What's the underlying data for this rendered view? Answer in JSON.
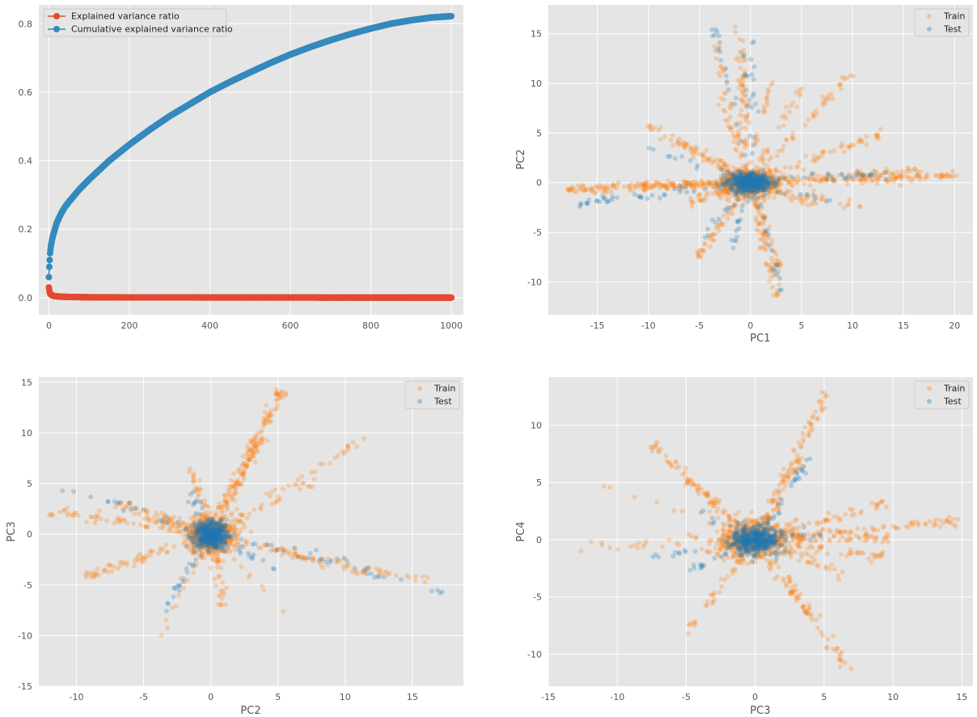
{
  "chart_data": [
    {
      "id": "variance",
      "type": "line",
      "title": "",
      "xlabel": "",
      "ylabel": "",
      "xlim": [
        -25,
        1030
      ],
      "ylim": [
        -0.05,
        0.855
      ],
      "xticks": [
        0,
        200,
        400,
        600,
        800,
        1000
      ],
      "yticks": [
        0.0,
        0.2,
        0.4,
        0.6,
        0.8
      ],
      "xtick_labels": [
        "0",
        "200",
        "400",
        "600",
        "800",
        "1000"
      ],
      "ytick_labels": [
        "0.0",
        "0.2",
        "0.4",
        "0.6",
        "0.8"
      ],
      "grid": true,
      "legend_position": "top-left",
      "series": [
        {
          "name": "Explained variance ratio",
          "color": "#e24a33",
          "marker": "circle",
          "x": [
            0,
            1,
            2,
            3,
            5,
            8,
            12,
            20,
            30,
            50,
            100,
            200,
            400,
            600,
            800,
            1000
          ],
          "values": [
            0.03,
            0.022,
            0.015,
            0.012,
            0.009,
            0.007,
            0.005,
            0.004,
            0.003,
            0.002,
            0.0012,
            0.0009,
            0.0006,
            0.0004,
            0.0003,
            0.0002
          ]
        },
        {
          "name": "Cumulative explained variance ratio",
          "color": "#348abd",
          "marker": "circle",
          "x": [
            0,
            1,
            2,
            3,
            5,
            8,
            10,
            15,
            20,
            30,
            40,
            50,
            75,
            100,
            150,
            200,
            250,
            300,
            350,
            400,
            450,
            500,
            550,
            600,
            650,
            700,
            750,
            800,
            850,
            900,
            950,
            1000
          ],
          "values": [
            0.06,
            0.09,
            0.11,
            0.13,
            0.15,
            0.17,
            0.18,
            0.2,
            0.22,
            0.245,
            0.265,
            0.28,
            0.315,
            0.345,
            0.4,
            0.447,
            0.49,
            0.53,
            0.565,
            0.6,
            0.63,
            0.658,
            0.685,
            0.71,
            0.732,
            0.752,
            0.77,
            0.786,
            0.8,
            0.81,
            0.818,
            0.822
          ]
        }
      ]
    },
    {
      "id": "pc1-pc2",
      "type": "scatter",
      "xlabel": "PC1",
      "ylabel": "PC2",
      "xlim": [
        -19.8,
        21.8
      ],
      "ylim": [
        -13.3,
        17.9
      ],
      "xticks": [
        -15,
        -10,
        -5,
        0,
        5,
        10,
        15,
        20
      ],
      "yticks": [
        -10,
        -5,
        0,
        5,
        10,
        15
      ],
      "xtick_labels": [
        "-15",
        "-10",
        "-5",
        "0",
        "5",
        "10",
        "15",
        "20"
      ],
      "ytick_labels": [
        "-10",
        "-5",
        "0",
        "5",
        "10",
        "15"
      ],
      "grid": true,
      "legend_position": "top-right",
      "seed": 101,
      "core_spread": [
        1.4,
        0.7
      ],
      "test_core_spread": [
        1.0,
        0.5
      ],
      "series": [
        {
          "name": "Train",
          "color": "#ff7f0e",
          "opacity": 0.25,
          "core_points": 550,
          "arms": [
            {
              "end": [
                -18,
                -0.6
              ],
              "n": 120
            },
            {
              "end": [
                -11,
                -0.3
              ],
              "n": 60
            },
            {
              "end": [
                20.3,
                0.7
              ],
              "n": 110
            },
            {
              "end": [
                16.5,
                1.2
              ],
              "n": 60
            },
            {
              "end": [
                13,
                5.0
              ],
              "n": 45
            },
            {
              "end": [
                9.8,
                11.0
              ],
              "n": 40
            },
            {
              "end": [
                -1.2,
                15.8
              ],
              "n": 55
            },
            {
              "end": [
                -3.5,
                13.8
              ],
              "n": 30
            },
            {
              "end": [
                -10,
                5.8
              ],
              "n": 40
            },
            {
              "end": [
                -7.2,
                4.3
              ],
              "n": 30
            },
            {
              "end": [
                2.6,
                -11.8
              ],
              "n": 50
            },
            {
              "end": [
                -5.2,
                -7.5
              ],
              "n": 45
            },
            {
              "end": [
                2.8,
                -8.5
              ],
              "n": 45
            },
            {
              "end": [
                6.5,
                -2.2
              ],
              "n": 25
            },
            {
              "end": [
                11.0,
                -2.5
              ],
              "n": 25
            },
            {
              "end": [
                -3.0,
                9.0
              ],
              "n": 25
            },
            {
              "end": [
                5.0,
                9.5
              ],
              "n": 25
            },
            {
              "end": [
                -6.0,
                -2.0
              ],
              "n": 30
            },
            {
              "end": [
                2.0,
                10.5
              ],
              "n": 20
            }
          ]
        },
        {
          "name": "Test",
          "color": "#1f77b4",
          "opacity": 0.25,
          "core_points": 450,
          "arms": [
            {
              "end": [
                -17,
                -2.2
              ],
              "n": 40
            },
            {
              "end": [
                13.5,
                1.0
              ],
              "n": 25
            },
            {
              "end": [
                -3.5,
                15.5
              ],
              "n": 18
            },
            {
              "end": [
                0.3,
                14.5
              ],
              "n": 18
            },
            {
              "end": [
                3.3,
                -11.5
              ],
              "n": 18
            },
            {
              "end": [
                -2.0,
                -7.0
              ],
              "n": 15
            },
            {
              "end": [
                -10,
                3.5
              ],
              "n": 12
            },
            {
              "end": [
                8.0,
                -1.8
              ],
              "n": 12
            },
            {
              "end": [
                -4.5,
                -5.5
              ],
              "n": 12
            },
            {
              "end": [
                -0.8,
                17.3
              ],
              "n": 6
            }
          ]
        }
      ]
    },
    {
      "id": "pc2-pc3",
      "type": "scatter",
      "xlabel": "PC2",
      "ylabel": "PC3",
      "xlim": [
        -12.8,
        18.8
      ],
      "ylim": [
        -15.0,
        15.5
      ],
      "xticks": [
        -10,
        -5,
        0,
        5,
        10,
        15
      ],
      "yticks": [
        -15,
        -10,
        -5,
        0,
        5,
        10,
        15
      ],
      "xtick_labels": [
        "-10",
        "-5",
        "0",
        "5",
        "10",
        "15"
      ],
      "ytick_labels": [
        "-15",
        "-10",
        "-5",
        "0",
        "5",
        "10",
        "15"
      ],
      "grid": true,
      "legend_position": "top-right",
      "seed": 202,
      "core_spread": [
        0.9,
        0.9
      ],
      "test_core_spread": [
        0.7,
        0.7
      ],
      "series": [
        {
          "name": "Train",
          "color": "#ff7f0e",
          "opacity": 0.25,
          "core_points": 550,
          "arms": [
            {
              "end": [
                5.2,
                14.2
              ],
              "n": 110
            },
            {
              "end": [
                3.8,
                9.5
              ],
              "n": 60
            },
            {
              "end": [
                11.5,
                9.5
              ],
              "n": 30
            },
            {
              "end": [
                8.2,
                5.5
              ],
              "n": 25
            },
            {
              "end": [
                -12,
                2.2
              ],
              "n": 55
            },
            {
              "end": [
                -7,
                3.2
              ],
              "n": 40
            },
            {
              "end": [
                -9.5,
                -4.2
              ],
              "n": 55
            },
            {
              "end": [
                16.5,
                -4.8
              ],
              "n": 45
            },
            {
              "end": [
                11.5,
                -3.8
              ],
              "n": 45
            },
            {
              "end": [
                1.0,
                -7.5
              ],
              "n": 30
            },
            {
              "end": [
                -4.0,
                -10.5
              ],
              "n": 15
            },
            {
              "end": [
                -1.5,
                6.5
              ],
              "n": 25
            },
            {
              "end": [
                -4.5,
                1.5
              ],
              "n": 25
            },
            {
              "end": [
                6.5,
                -9.2
              ],
              "n": 8
            }
          ]
        },
        {
          "name": "Test",
          "color": "#1f77b4",
          "opacity": 0.25,
          "core_points": 450,
          "arms": [
            {
              "end": [
                -11.5,
                4.8
              ],
              "n": 12
            },
            {
              "end": [
                -9,
                4.2
              ],
              "n": 6
            },
            {
              "end": [
                -3.5,
                -7.5
              ],
              "n": 22
            },
            {
              "end": [
                17.4,
                -5.6
              ],
              "n": 25
            },
            {
              "end": [
                10.2,
                -2.6
              ],
              "n": 10
            },
            {
              "end": [
                -1.5,
                4.2
              ],
              "n": 10
            },
            {
              "end": [
                5.0,
                -3.5
              ],
              "n": 12
            }
          ]
        }
      ]
    },
    {
      "id": "pc3-pc4",
      "type": "scatter",
      "xlabel": "PC3",
      "ylabel": "PC4",
      "xlim": [
        -15.0,
        15.8
      ],
      "ylim": [
        -12.8,
        14.2
      ],
      "xticks": [
        -15,
        -10,
        -5,
        0,
        5,
        10,
        15
      ],
      "yticks": [
        -10,
        -5,
        0,
        5,
        10
      ],
      "xtick_labels": [
        "-15",
        "-10",
        "-5",
        "0",
        "5",
        "10",
        "15"
      ],
      "ytick_labels": [
        "-10",
        "-5",
        "0",
        "5",
        "10"
      ],
      "grid": true,
      "legend_position": "top-right",
      "seed": 303,
      "core_spread": [
        1.4,
        0.8
      ],
      "test_core_spread": [
        0.9,
        0.6
      ],
      "series": [
        {
          "name": "Train",
          "color": "#ff7f0e",
          "opacity": 0.25,
          "core_points": 550,
          "arms": [
            {
              "end": [
                5.2,
                12.8
              ],
              "n": 70
            },
            {
              "end": [
                3.5,
                7.5
              ],
              "n": 40
            },
            {
              "end": [
                -7.5,
                8.3
              ],
              "n": 55
            },
            {
              "end": [
                -5.0,
                5.2
              ],
              "n": 30
            },
            {
              "end": [
                14.8,
                1.7
              ],
              "n": 70
            },
            {
              "end": [
                9.8,
                0.2
              ],
              "n": 45
            },
            {
              "end": [
                9.5,
                3.2
              ],
              "n": 40
            },
            {
              "end": [
                9.2,
                -1.5
              ],
              "n": 40
            },
            {
              "end": [
                7.0,
                -11.7
              ],
              "n": 50
            },
            {
              "end": [
                4.5,
                -7.5
              ],
              "n": 30
            },
            {
              "end": [
                -13.5,
                -0.8
              ],
              "n": 20
            },
            {
              "end": [
                -11.0,
                4.8
              ],
              "n": 8
            },
            {
              "end": [
                -5.0,
                -8.2
              ],
              "n": 20
            },
            {
              "end": [
                -3.5,
                -5.5
              ],
              "n": 15
            },
            {
              "end": [
                6.5,
                -3.0
              ],
              "n": 25
            }
          ]
        },
        {
          "name": "Test",
          "color": "#1f77b4",
          "opacity": 0.25,
          "core_points": 450,
          "arms": [
            {
              "end": [
                4.3,
                7.5
              ],
              "n": 25
            },
            {
              "end": [
                -5.2,
                -3.0
              ],
              "n": 15
            },
            {
              "end": [
                -7.5,
                -1.5
              ],
              "n": 12
            },
            {
              "end": [
                5.0,
                0.5
              ],
              "n": 12
            },
            {
              "end": [
                -4.0,
                2.5
              ],
              "n": 8
            }
          ]
        }
      ]
    }
  ]
}
